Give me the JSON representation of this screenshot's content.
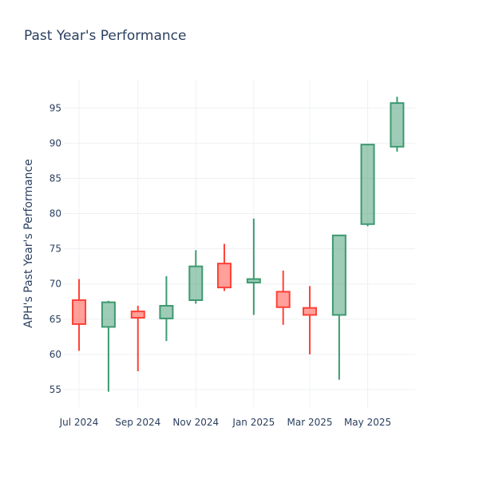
{
  "chart_data": {
    "type": "candlestick",
    "title": "Past Year's Performance",
    "xlabel": "",
    "ylabel": "APH's Past Year's Performance",
    "ylim": [
      52.5,
      99
    ],
    "yticks": [
      55,
      60,
      65,
      70,
      75,
      80,
      85,
      90,
      95
    ],
    "xticks": [
      {
        "label": "Jul 2024",
        "date": "2024-07-01"
      },
      {
        "label": "Sep 2024",
        "date": "2024-09-01"
      },
      {
        "label": "Nov 2024",
        "date": "2024-11-01"
      },
      {
        "label": "Jan 2025",
        "date": "2025-01-01"
      },
      {
        "label": "Mar 2025",
        "date": "2025-03-01"
      },
      {
        "label": "May 2025",
        "date": "2025-05-01"
      }
    ],
    "xlim": [
      "2024-06-15",
      "2025-06-20"
    ],
    "grid": true,
    "colors": {
      "increasing": "#3d9970",
      "decreasing": "#ff4136"
    },
    "candles": [
      {
        "date": "2024-07-01",
        "open": 67.7,
        "high": 70.7,
        "low": 60.5,
        "close": 64.3
      },
      {
        "date": "2024-08-01",
        "open": 63.9,
        "high": 67.6,
        "low": 54.7,
        "close": 67.4
      },
      {
        "date": "2024-09-01",
        "open": 66.1,
        "high": 66.9,
        "low": 57.6,
        "close": 65.2
      },
      {
        "date": "2024-10-01",
        "open": 65.1,
        "high": 71.1,
        "low": 61.9,
        "close": 66.9
      },
      {
        "date": "2024-11-01",
        "open": 67.7,
        "high": 74.8,
        "low": 67.2,
        "close": 72.5
      },
      {
        "date": "2024-12-01",
        "open": 72.9,
        "high": 75.7,
        "low": 69.0,
        "close": 69.5
      },
      {
        "date": "2025-01-01",
        "open": 70.2,
        "high": 79.3,
        "low": 65.6,
        "close": 70.7
      },
      {
        "date": "2025-02-01",
        "open": 68.9,
        "high": 71.9,
        "low": 64.2,
        "close": 66.7
      },
      {
        "date": "2025-03-01",
        "open": 66.6,
        "high": 69.7,
        "low": 60.0,
        "close": 65.6
      },
      {
        "date": "2025-04-01",
        "open": 65.6,
        "high": 77.0,
        "low": 56.4,
        "close": 76.9
      },
      {
        "date": "2025-05-01",
        "open": 78.5,
        "high": 89.9,
        "low": 78.2,
        "close": 89.8
      },
      {
        "date": "2025-06-01",
        "open": 89.5,
        "high": 96.6,
        "low": 88.8,
        "close": 95.7
      }
    ]
  }
}
